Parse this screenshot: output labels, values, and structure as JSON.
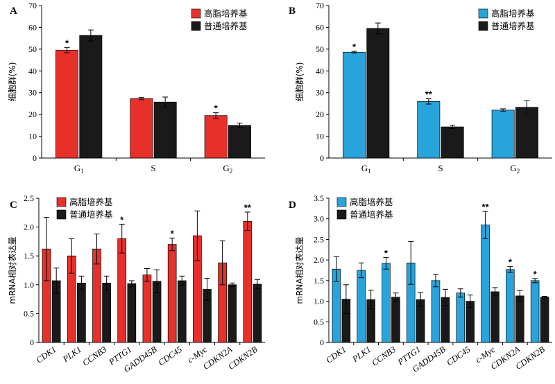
{
  "colors": {
    "high_fat": "#e8302a",
    "normal": "#1a1a1a",
    "high_fat_blue": "#29a3dc",
    "axis": "#000000"
  },
  "chart_data": [
    {
      "panel": "A",
      "type": "bar",
      "ylabel": "细胞群(%)",
      "ylim": [
        0,
        70
      ],
      "yticks": [
        0,
        10,
        20,
        30,
        40,
        50,
        60,
        70
      ],
      "categories": [
        "G1",
        "S",
        "G2"
      ],
      "category_labels": [
        {
          "base": "G",
          "sub": "1"
        },
        {
          "base": "S",
          "sub": ""
        },
        {
          "base": "G",
          "sub": "2"
        }
      ],
      "legend": [
        "高脂培养基",
        "普通培养基"
      ],
      "legend_position": "top-right",
      "series": [
        {
          "name": "高脂培养基",
          "values": [
            49.5,
            27.3,
            19.5
          ],
          "errors": [
            1.2,
            0.5,
            1.3
          ],
          "color": "#e8302a"
        },
        {
          "name": "普通培养基",
          "values": [
            56.3,
            25.7,
            15.0
          ],
          "errors": [
            2.5,
            2.3,
            1.0
          ],
          "color": "#1a1a1a"
        }
      ],
      "significance": [
        {
          "series": 0,
          "index": 0,
          "label": "*"
        },
        {
          "series": 0,
          "index": 2,
          "label": "*"
        }
      ]
    },
    {
      "panel": "B",
      "type": "bar",
      "ylabel": "细胞群(%)",
      "ylim": [
        0,
        70
      ],
      "yticks": [
        0,
        10,
        20,
        30,
        40,
        50,
        60,
        70
      ],
      "categories": [
        "G1",
        "S",
        "G2"
      ],
      "category_labels": [
        {
          "base": "G",
          "sub": "1"
        },
        {
          "base": "S",
          "sub": ""
        },
        {
          "base": "G",
          "sub": "2"
        }
      ],
      "legend": [
        "高脂培养基",
        "普通培养基"
      ],
      "legend_position": "top-right",
      "series": [
        {
          "name": "高脂培养基",
          "values": [
            48.6,
            26.0,
            22.0
          ],
          "errors": [
            0.4,
            1.2,
            0.6
          ],
          "color": "#29a3dc"
        },
        {
          "name": "普通培养基",
          "values": [
            59.5,
            14.3,
            23.3
          ],
          "errors": [
            2.5,
            0.8,
            3.0
          ],
          "color": "#1a1a1a"
        }
      ],
      "significance": [
        {
          "series": 0,
          "index": 0,
          "label": "*"
        },
        {
          "series": 0,
          "index": 1,
          "label": "**"
        }
      ]
    },
    {
      "panel": "C",
      "type": "bar",
      "ylabel": "mRNA相对表达量",
      "ylim": [
        0,
        2.5
      ],
      "yticks": [
        0,
        0.5,
        1.0,
        1.5,
        2.0,
        2.5
      ],
      "ytick_labels": [
        "0",
        "0.5",
        "1.0",
        "1.5",
        "2.0",
        "2.5"
      ],
      "categories": [
        "CDK1",
        "PLK1",
        "CCNB3",
        "PTTG1",
        "GADD45B",
        "CDC45",
        "c-Myc",
        "CDKN2A",
        "CDKN2B"
      ],
      "legend": [
        "高脂培养基",
        "普通培养基"
      ],
      "legend_position": "top-left",
      "series": [
        {
          "name": "高脂培养基",
          "values": [
            1.62,
            1.5,
            1.62,
            1.8,
            1.17,
            1.7,
            1.85,
            1.38,
            2.1
          ],
          "errors": [
            0.55,
            0.3,
            0.26,
            0.25,
            0.11,
            0.11,
            0.43,
            0.38,
            0.16
          ],
          "color": "#e8302a"
        },
        {
          "name": "普通培养基",
          "values": [
            1.07,
            1.03,
            1.03,
            1.02,
            1.06,
            1.07,
            0.92,
            1.0,
            1.01
          ],
          "errors": [
            0.22,
            0.12,
            0.12,
            0.05,
            0.2,
            0.08,
            0.19,
            0.03,
            0.08
          ],
          "color": "#1a1a1a"
        }
      ],
      "significance": [
        {
          "series": 0,
          "index": 3,
          "label": "*"
        },
        {
          "series": 0,
          "index": 5,
          "label": "*"
        },
        {
          "series": 0,
          "index": 8,
          "label": "**"
        }
      ]
    },
    {
      "panel": "D",
      "type": "bar",
      "ylabel": "mRNA相对表达量",
      "ylim": [
        0,
        3.5
      ],
      "yticks": [
        0,
        0.5,
        1.0,
        1.5,
        2.0,
        2.5,
        3.0,
        3.5
      ],
      "ytick_labels": [
        "0",
        "0.5",
        "1.0",
        "1.5",
        "2.0",
        "2.5",
        "3.0",
        "3.5"
      ],
      "categories": [
        "CDK1",
        "PLK1",
        "CCNB3",
        "PTTG1",
        "GADD45B",
        "CDC45",
        "c-Myc",
        "CDKN2A",
        "CDKN2B"
      ],
      "legend": [
        "高脂培养基",
        "普通培养基"
      ],
      "legend_position": "top-left",
      "series": [
        {
          "name": "高脂培养基",
          "values": [
            1.78,
            1.75,
            1.92,
            1.93,
            1.5,
            1.2,
            2.85,
            1.77,
            1.5
          ],
          "errors": [
            0.3,
            0.18,
            0.14,
            0.52,
            0.15,
            0.1,
            0.33,
            0.07,
            0.05
          ],
          "color": "#29a3dc"
        },
        {
          "name": "普通培养基",
          "values": [
            1.05,
            1.04,
            1.1,
            1.04,
            1.09,
            1.0,
            1.23,
            1.13,
            1.1
          ],
          "errors": [
            0.35,
            0.23,
            0.1,
            0.17,
            0.2,
            0.15,
            0.1,
            0.13,
            0.02
          ],
          "color": "#1a1a1a"
        }
      ],
      "significance": [
        {
          "series": 0,
          "index": 2,
          "label": "*"
        },
        {
          "series": 0,
          "index": 6,
          "label": "**"
        },
        {
          "series": 0,
          "index": 7,
          "label": "*"
        },
        {
          "series": 0,
          "index": 8,
          "label": "*"
        }
      ]
    }
  ]
}
